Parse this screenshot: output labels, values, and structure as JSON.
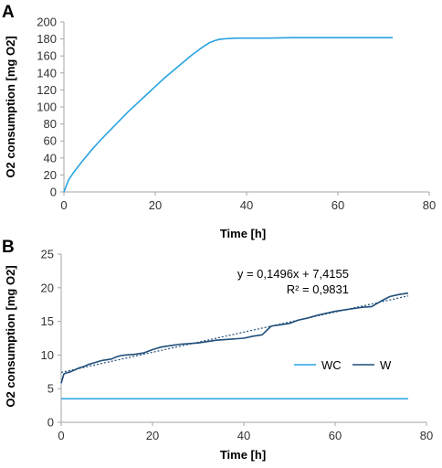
{
  "chart_data": [
    {
      "type": "line",
      "panel_label": "A",
      "xlabel": "Time [h]",
      "ylabel": "O2 consumption [mg O2]",
      "xlim": [
        0,
        80
      ],
      "ylim": [
        0,
        200
      ],
      "xticks": [
        0,
        20,
        40,
        60,
        80
      ],
      "yticks": [
        0,
        20,
        40,
        60,
        80,
        100,
        120,
        140,
        160,
        180,
        200
      ],
      "grid": false,
      "series": [
        {
          "color": "#29a3e0",
          "x": [
            0,
            1,
            2,
            4,
            6,
            8,
            10,
            12,
            14,
            16,
            18,
            20,
            22,
            24,
            26,
            28,
            30,
            32,
            33,
            34,
            35,
            36,
            38,
            40,
            45,
            50,
            55,
            60,
            65,
            70,
            72
          ],
          "y": [
            0,
            14,
            22,
            36,
            49,
            61,
            72,
            83,
            94,
            104,
            114,
            124,
            134,
            143,
            152,
            161,
            169,
            176,
            178,
            179.5,
            180,
            180.5,
            181,
            181,
            181,
            181.5,
            181.5,
            181.5,
            181.5,
            181.5,
            181.5
          ]
        }
      ]
    },
    {
      "type": "line",
      "panel_label": "B",
      "xlabel": "Time [h]",
      "ylabel": "O2 consumption [mg O2]",
      "xlim": [
        0,
        80
      ],
      "ylim": [
        0,
        25
      ],
      "xticks": [
        0,
        20,
        40,
        60,
        80
      ],
      "yticks": [
        0,
        5,
        10,
        15,
        20,
        25
      ],
      "grid": false,
      "legend_position": "right",
      "annotation": [
        "y = 0,1496x + 7,4155",
        "R² = 0,9831"
      ],
      "trendline": {
        "slope": 0.1496,
        "intercept": 7.4155,
        "x_range": [
          0,
          76
        ],
        "color": "#1f4e79"
      },
      "series": [
        {
          "name": "WC",
          "color": "#29a3e0",
          "x": [
            0,
            76
          ],
          "y": [
            3.5,
            3.5
          ]
        },
        {
          "name": "W",
          "color": "#1f4e79",
          "x": [
            0,
            0.3,
            0.6,
            1,
            2,
            3,
            4,
            5,
            6,
            7,
            8,
            9,
            10,
            11,
            12,
            13,
            14,
            16,
            18,
            20,
            22,
            24,
            26,
            28,
            30,
            32,
            34,
            36,
            38,
            40,
            42,
            44,
            46,
            48,
            50,
            52,
            54,
            56,
            58,
            60,
            62,
            64,
            66,
            68,
            70,
            72,
            74,
            76
          ],
          "y": [
            5.8,
            6.5,
            7.2,
            7.3,
            7.5,
            7.8,
            8.1,
            8.3,
            8.6,
            8.8,
            9.0,
            9.2,
            9.3,
            9.4,
            9.7,
            9.9,
            10.0,
            10.1,
            10.3,
            10.8,
            11.2,
            11.4,
            11.6,
            11.7,
            11.8,
            12.0,
            12.2,
            12.3,
            12.4,
            12.5,
            12.8,
            13.0,
            14.3,
            14.5,
            14.7,
            15.2,
            15.5,
            15.9,
            16.2,
            16.5,
            16.7,
            16.9,
            17.1,
            17.2,
            18.0,
            18.7,
            19.0,
            19.2
          ]
        }
      ]
    }
  ]
}
